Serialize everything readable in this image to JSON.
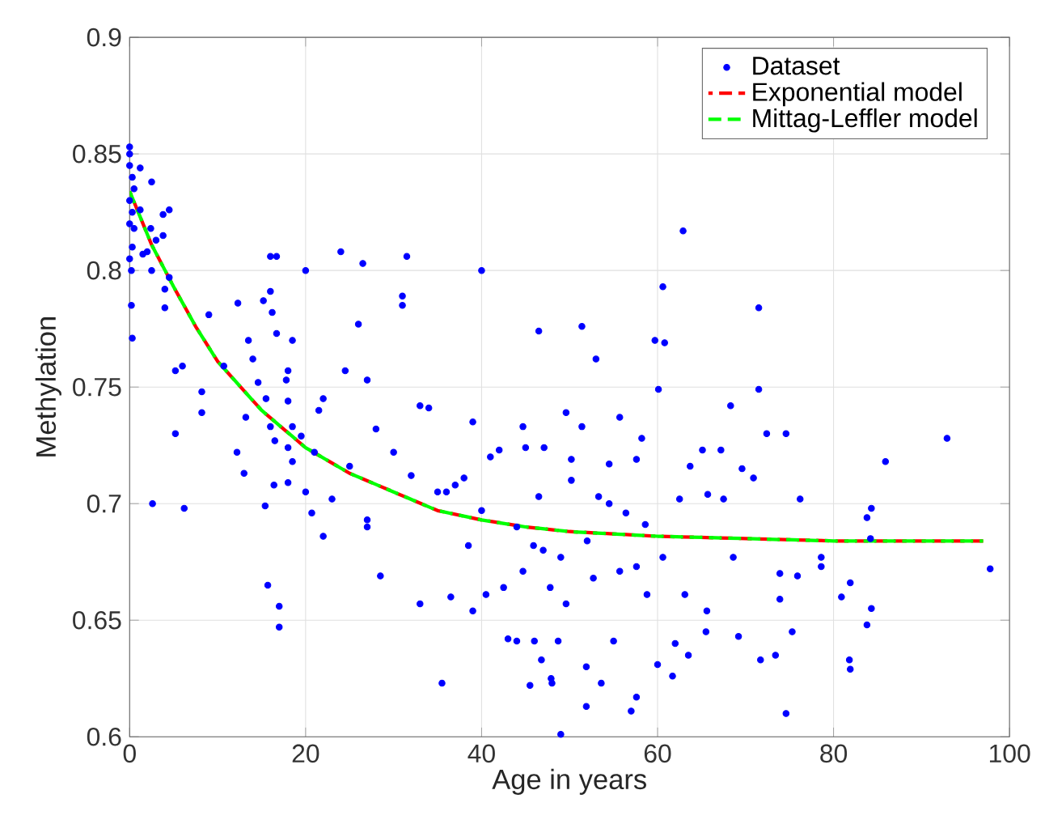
{
  "chart_data": {
    "type": "scatter",
    "xlabel": "Age in years",
    "ylabel": "Methylation",
    "xlim": [
      0,
      100
    ],
    "ylim": [
      0.6,
      0.9
    ],
    "xticks": [
      0,
      20,
      40,
      60,
      80,
      100
    ],
    "yticks": [
      0.6,
      0.65,
      0.7,
      0.75,
      0.8,
      0.85,
      0.9
    ],
    "grid": true,
    "legend": "top right",
    "series": [
      {
        "name": "Dataset",
        "marker": "circle",
        "color": "#0000ff",
        "x": [
          0,
          0,
          0,
          0.3,
          0.5,
          0,
          0.3,
          0,
          0.5,
          0.3,
          0,
          0.2,
          0.2,
          0.3,
          1.2,
          2.5,
          1.2,
          2.4,
          1.5,
          2,
          3.8,
          4.5,
          3.8,
          2.5,
          3,
          4.5,
          4,
          4,
          5.2,
          6,
          5.2,
          2.6,
          6.2,
          8.2,
          8.2,
          9,
          10.7,
          12.3,
          12.2,
          13,
          13.2,
          13.5,
          14,
          14.6,
          15.5,
          15.2,
          16,
          16,
          16.7,
          16.2,
          16.7,
          16,
          16.5,
          16.4,
          15.4,
          15.7,
          17,
          17,
          18,
          18,
          18.5,
          18.5,
          17.8,
          18,
          18.5,
          18,
          19.5,
          20,
          20,
          20.7,
          21,
          21.5,
          22,
          22,
          23,
          24,
          24.5,
          25,
          26,
          27,
          27,
          26.5,
          27,
          28,
          28.5,
          30,
          31,
          31,
          31.5,
          32,
          33,
          33,
          34,
          35,
          35.5,
          36,
          36.5,
          37,
          38,
          38.5,
          39,
          39,
          40,
          40,
          40.5,
          41,
          42,
          42.5,
          43,
          44,
          45,
          46,
          48,
          47,
          44,
          46.5,
          51.4,
          62.9,
          60.6,
          71.5,
          59.7,
          60.8,
          53,
          60.1,
          71.5,
          68.3,
          92.9,
          85.9,
          72.4,
          74.6,
          65.1,
          67.2,
          76.2,
          84.3,
          83.8,
          84.2,
          78.6,
          78.6,
          75.9,
          73.9,
          73.9,
          80.9,
          81.9,
          84.3,
          83.8,
          81.8,
          81.9,
          74.6,
          73.4,
          71.7,
          75.3,
          69.2,
          97.8,
          70.9,
          69.6,
          68.6,
          61.7,
          57,
          57.6,
          49,
          51.9,
          53.6,
          47.9,
          45.5,
          46.8,
          51.9,
          60,
          63.5,
          65.5,
          62,
          55,
          48.7,
          53.3,
          56.4,
          58.6,
          62.5,
          63.7,
          65.7,
          67.5,
          50.2,
          46.5,
          44.7,
          47.8,
          49.6,
          52.7,
          55.7,
          58.8,
          60.6,
          63.1,
          65.6,
          57.6,
          45.9,
          49,
          52,
          54.5,
          51.4,
          55.7,
          58.2,
          49.6,
          44.7,
          47.1,
          54.5,
          57.6,
          50.2
        ],
        "values": [
          0.853,
          0.85,
          0.845,
          0.84,
          0.835,
          0.83,
          0.825,
          0.82,
          0.818,
          0.81,
          0.805,
          0.8,
          0.785,
          0.771,
          0.844,
          0.838,
          0.826,
          0.818,
          0.807,
          0.808,
          0.824,
          0.826,
          0.815,
          0.8,
          0.813,
          0.797,
          0.792,
          0.784,
          0.757,
          0.759,
          0.73,
          0.7,
          0.698,
          0.748,
          0.739,
          0.781,
          0.759,
          0.786,
          0.722,
          0.713,
          0.737,
          0.77,
          0.762,
          0.752,
          0.745,
          0.787,
          0.806,
          0.791,
          0.806,
          0.782,
          0.773,
          0.733,
          0.727,
          0.708,
          0.699,
          0.665,
          0.656,
          0.647,
          0.757,
          0.744,
          0.733,
          0.77,
          0.753,
          0.724,
          0.718,
          0.709,
          0.729,
          0.8,
          0.705,
          0.696,
          0.722,
          0.74,
          0.745,
          0.686,
          0.702,
          0.808,
          0.757,
          0.716,
          0.777,
          0.753,
          0.693,
          0.803,
          0.69,
          0.732,
          0.669,
          0.722,
          0.789,
          0.785,
          0.806,
          0.712,
          0.742,
          0.657,
          0.741,
          0.705,
          0.623,
          0.705,
          0.66,
          0.708,
          0.711,
          0.682,
          0.735,
          0.654,
          0.697,
          0.8,
          0.661,
          0.72,
          0.723,
          0.664,
          0.642,
          0.641,
          0.724,
          0.641,
          0.623,
          0.68,
          0.69,
          0.774,
          0.776,
          0.817,
          0.793,
          0.784,
          0.77,
          0.769,
          0.762,
          0.749,
          0.749,
          0.742,
          0.728,
          0.718,
          0.73,
          0.73,
          0.723,
          0.723,
          0.702,
          0.698,
          0.694,
          0.685,
          0.677,
          0.673,
          0.669,
          0.67,
          0.659,
          0.66,
          0.666,
          0.655,
          0.648,
          0.633,
          0.629,
          0.61,
          0.635,
          0.633,
          0.645,
          0.643,
          0.672,
          0.711,
          0.715,
          0.677,
          0.626,
          0.611,
          0.617,
          0.601,
          0.613,
          0.623,
          0.625,
          0.622,
          0.633,
          0.63,
          0.631,
          0.635,
          0.645,
          0.64,
          0.641,
          0.641,
          0.703,
          0.696,
          0.691,
          0.702,
          0.716,
          0.704,
          0.702,
          0.71,
          0.703,
          0.671,
          0.664,
          0.657,
          0.668,
          0.671,
          0.661,
          0.677,
          0.661,
          0.654,
          0.673,
          0.682,
          0.677,
          0.684,
          0.7,
          0.733,
          0.737,
          0.728,
          0.739,
          0.733,
          0.724,
          0.717,
          0.719,
          0.719
        ]
      },
      {
        "name": "Exponential model",
        "type": "line",
        "line_style": "dashed",
        "marker": "none",
        "color": "#ff0000",
        "x": [
          0,
          2.5,
          5,
          7.5,
          10,
          15,
          20,
          25,
          30,
          35,
          40,
          45,
          50,
          60,
          70,
          80,
          90,
          97
        ],
        "values": [
          0.834,
          0.811,
          0.793,
          0.776,
          0.761,
          0.74,
          0.724,
          0.713,
          0.705,
          0.697,
          0.693,
          0.69,
          0.688,
          0.686,
          0.685,
          0.684,
          0.684,
          0.684
        ]
      },
      {
        "name": "Mittag-Leffler model",
        "type": "line",
        "line_style": "dashed",
        "marker": "none",
        "color": "#00ff00",
        "x": [
          0,
          2.5,
          5,
          7.5,
          10,
          15,
          20,
          25,
          30,
          35,
          40,
          45,
          50,
          60,
          70,
          80,
          90,
          97
        ],
        "values": [
          0.834,
          0.811,
          0.793,
          0.776,
          0.761,
          0.74,
          0.724,
          0.713,
          0.705,
          0.697,
          0.693,
          0.69,
          0.688,
          0.686,
          0.685,
          0.684,
          0.684,
          0.684
        ]
      }
    ]
  }
}
